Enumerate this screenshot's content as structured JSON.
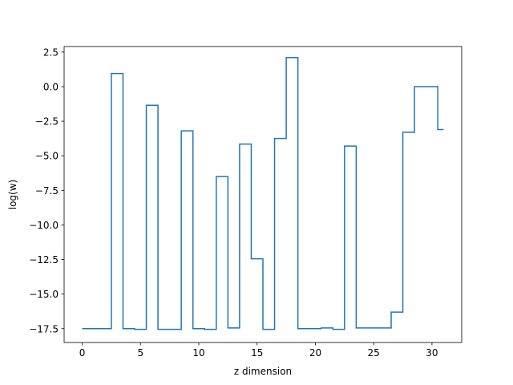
{
  "chart_data": {
    "type": "line",
    "drawstyle": "steps-mid",
    "title": "",
    "xlabel": "z dimension",
    "ylabel": "log(w)",
    "xlim": [
      -1.55,
      32.55
    ],
    "ylim": [
      -18.5,
      2.9
    ],
    "xticks": [
      0,
      5,
      10,
      15,
      20,
      25,
      30
    ],
    "xtick_labels": [
      "0",
      "5",
      "10",
      "15",
      "20",
      "25",
      "30"
    ],
    "yticks": [
      2.5,
      0.0,
      -2.5,
      -5.0,
      -7.5,
      -10.0,
      -12.5,
      -15.0,
      -17.5
    ],
    "ytick_labels": [
      "2.5",
      "0.0",
      "−2.5",
      "−5.0",
      "−7.5",
      "−10.0",
      "−12.5",
      "−15.0",
      "−17.5"
    ],
    "grid": false,
    "colors": {
      "line": "#1f77b4",
      "axes": "#000000",
      "background": "#ffffff"
    },
    "series": [
      {
        "x": [
          0,
          1,
          2,
          3,
          4,
          5,
          6,
          7,
          8,
          9,
          10,
          11,
          12,
          13,
          14,
          15,
          16,
          17,
          18,
          19,
          20,
          21,
          22,
          23,
          24,
          25,
          26,
          27,
          28,
          29,
          30,
          31
        ],
        "y": [
          -17.5,
          -17.5,
          -17.5,
          0.95,
          -17.5,
          -17.55,
          -1.35,
          -17.55,
          -17.55,
          -3.2,
          -17.5,
          -17.55,
          -6.5,
          -17.45,
          -4.15,
          -12.45,
          -17.55,
          -3.75,
          2.1,
          -17.5,
          -17.5,
          -17.45,
          -17.55,
          -4.3,
          -17.45,
          -17.45,
          -17.45,
          -16.3,
          -3.3,
          0.0,
          0.0,
          -3.1
        ]
      }
    ]
  }
}
